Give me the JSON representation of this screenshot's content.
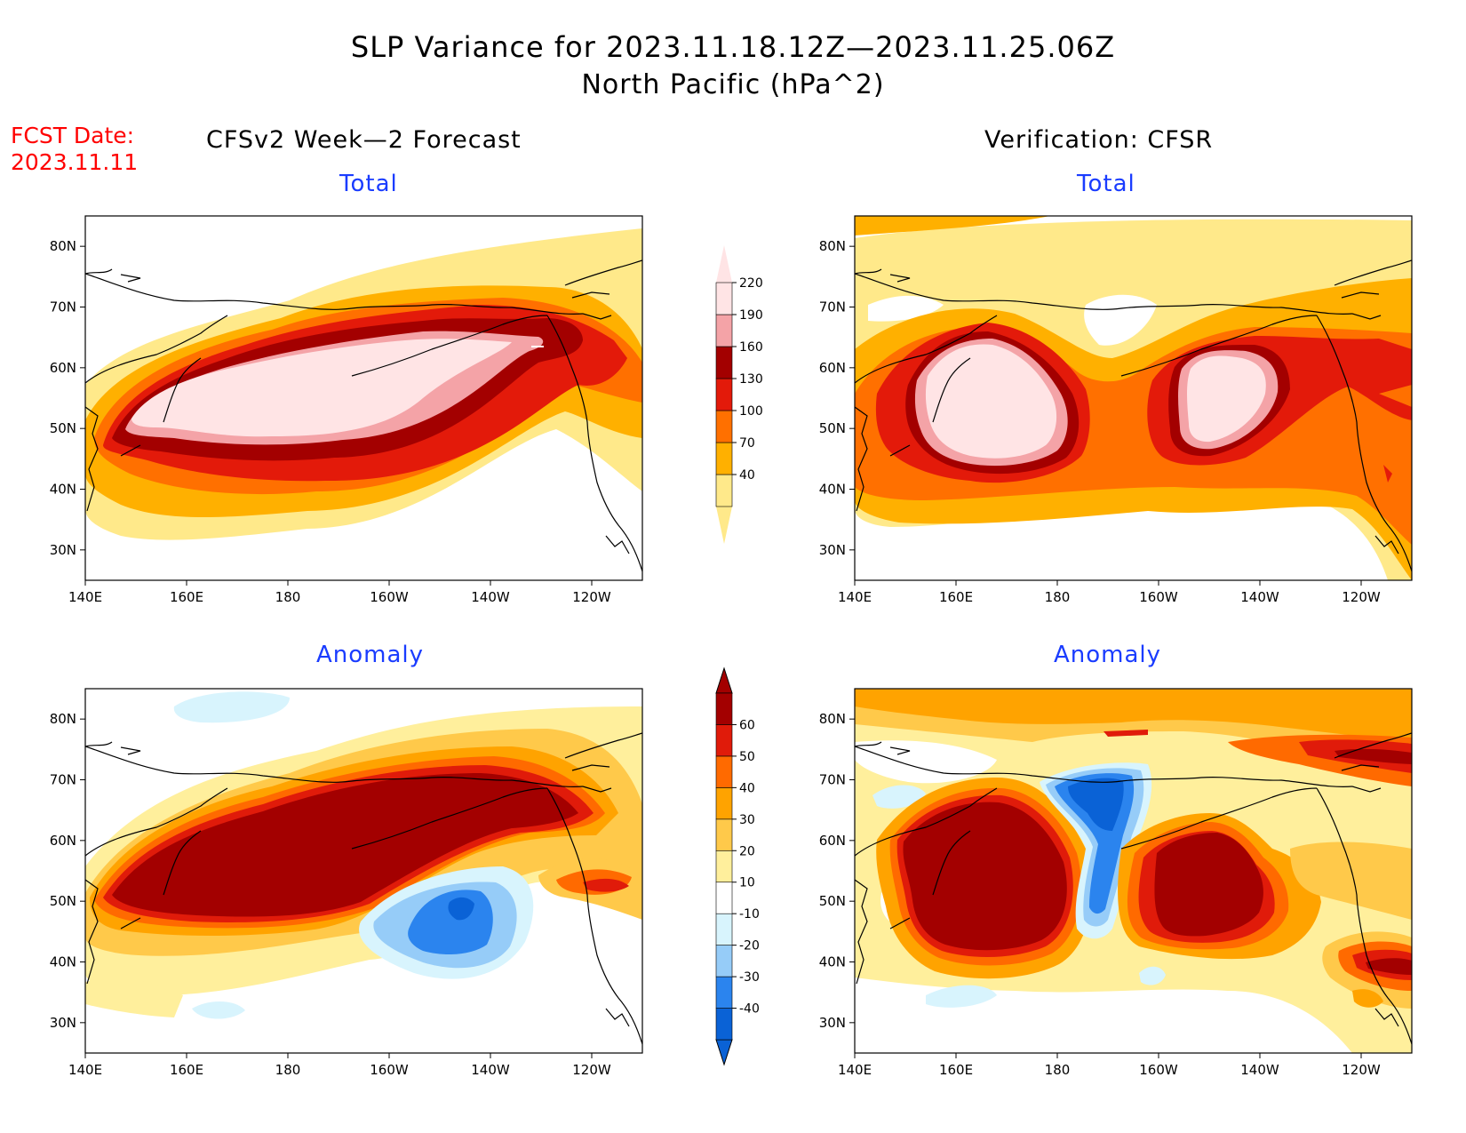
{
  "header": {
    "title_line1": "SLP Variance for 2023.11.18.12Z—2023.11.25.06Z",
    "title_line2": "North Pacific (hPa^2)",
    "fcst_label": "FCST Date:",
    "fcst_date": "2023.11.11",
    "left_column": "CFSv2 Week—2 Forecast",
    "right_column": "Verification: CFSR"
  },
  "panels": {
    "fcst_total": {
      "title": "Total"
    },
    "verif_total": {
      "title": "Total"
    },
    "fcst_anom": {
      "title": "Anomaly"
    },
    "verif_anom": {
      "title": "Anomaly"
    }
  },
  "axes": {
    "lat_labels": [
      "80N",
      "70N",
      "60N",
      "50N",
      "40N",
      "30N"
    ],
    "lat_values": [
      80,
      70,
      60,
      50,
      40,
      30
    ],
    "lon_labels": [
      "140E",
      "160E",
      "180",
      "160W",
      "140W",
      "120W"
    ],
    "lon_values": [
      140,
      160,
      180,
      200,
      220,
      240
    ],
    "lon_range": [
      140,
      250
    ],
    "lat_range": [
      25,
      85
    ]
  },
  "colorbars": {
    "total": {
      "levels": [
        "40",
        "70",
        "100",
        "130",
        "160",
        "190",
        "220"
      ],
      "colors": [
        "#ffe98a",
        "#ffb000",
        "#ff7000",
        "#e31a0a",
        "#a30000",
        "#f4a3a7",
        "#ffe4e5"
      ]
    },
    "anomaly": {
      "levels": [
        "-40",
        "-30",
        "-20",
        "-10",
        "10",
        "20",
        "30",
        "40",
        "50",
        "60"
      ],
      "colors": [
        "#0a62d6",
        "#2b84ee",
        "#96ccf8",
        "#d8f4fd",
        "#ffffff",
        "#ffef9c",
        "#ffc94a",
        "#ffa300",
        "#ff6a00",
        "#e01b0a",
        "#a30000"
      ]
    }
  }
}
